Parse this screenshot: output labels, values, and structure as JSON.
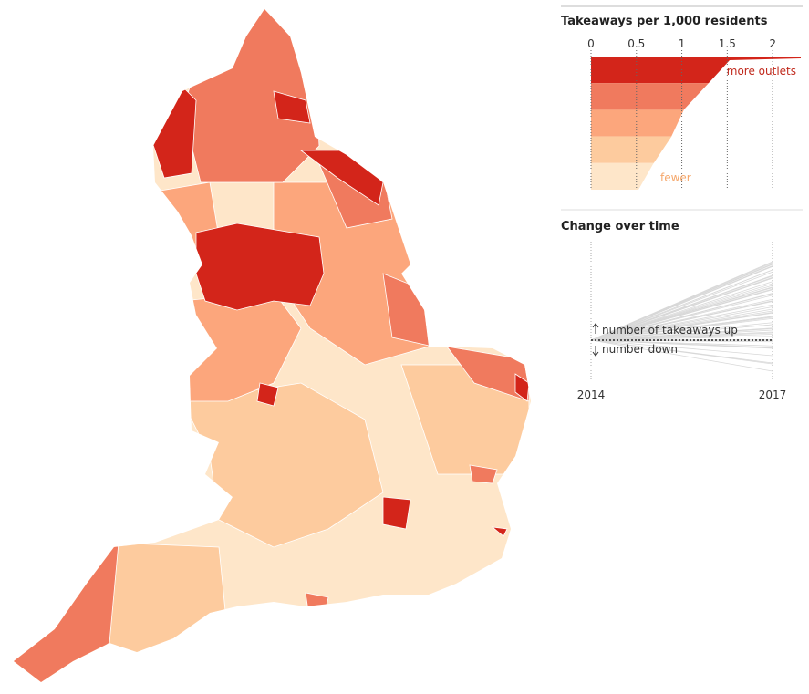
{
  "legend": {
    "title": "Takeaways per 1,000 residents",
    "xlim": [
      0,
      2.31
    ],
    "xticks": [
      0,
      0.5,
      1,
      1.5,
      2
    ],
    "colors": [
      "#d3251a",
      "#f07a5e",
      "#fca67c",
      "#fdcb9e",
      "#fee6c9"
    ],
    "high_label": "more outlets",
    "low_label": "fewer"
  },
  "change": {
    "title": "Change over time",
    "up_label": "number of takeaways up",
    "down_label": "number down",
    "x": [
      "2014",
      "2017"
    ]
  }
}
